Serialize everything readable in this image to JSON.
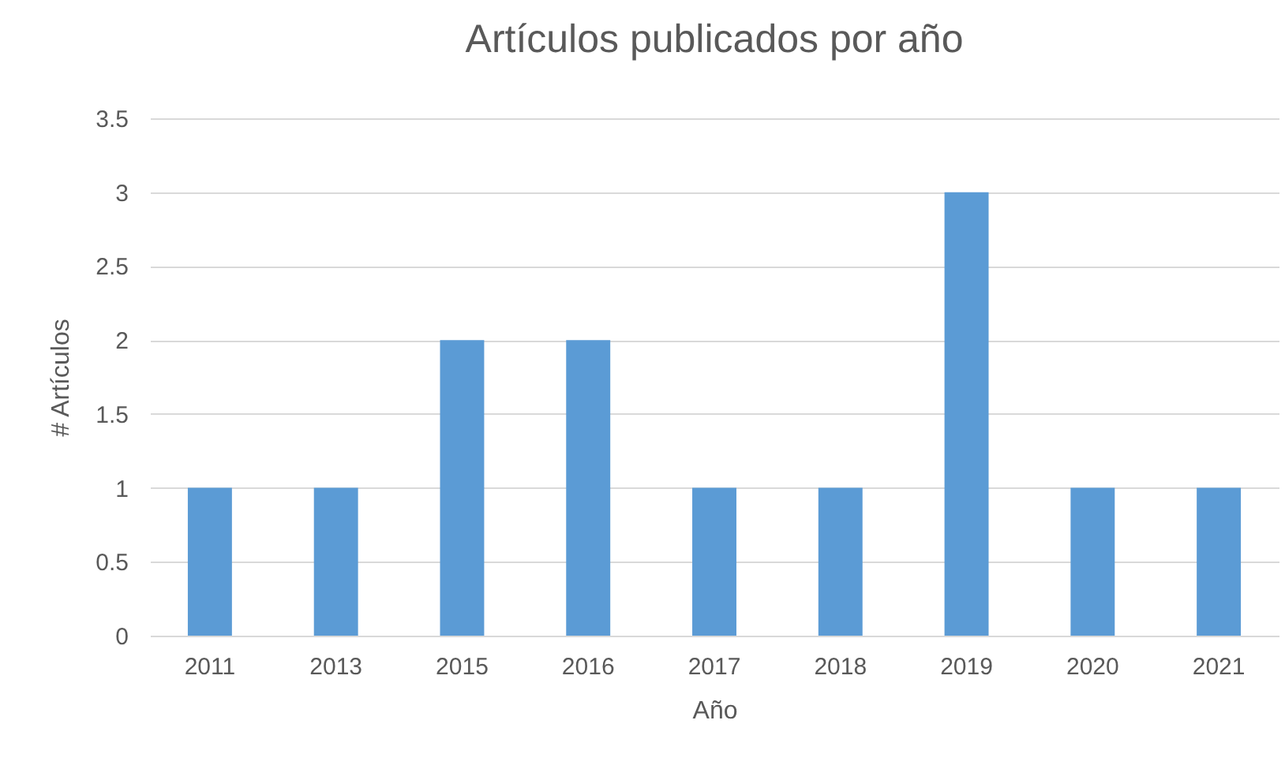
{
  "chart_data": {
    "type": "bar",
    "title": "Artículos publicados por año",
    "xlabel": "Año",
    "ylabel": "# Artículos",
    "categories": [
      "2011",
      "2013",
      "2015",
      "2016",
      "2017",
      "2018",
      "2019",
      "2020",
      "2021"
    ],
    "values": [
      1,
      1,
      2,
      2,
      1,
      1,
      3,
      1,
      1
    ],
    "color": "#5b9bd5",
    "ylim": [
      0,
      3.5
    ],
    "yticks": [
      0,
      0.5,
      1,
      1.5,
      2,
      2.5,
      3,
      3.5
    ],
    "grid": "y"
  }
}
